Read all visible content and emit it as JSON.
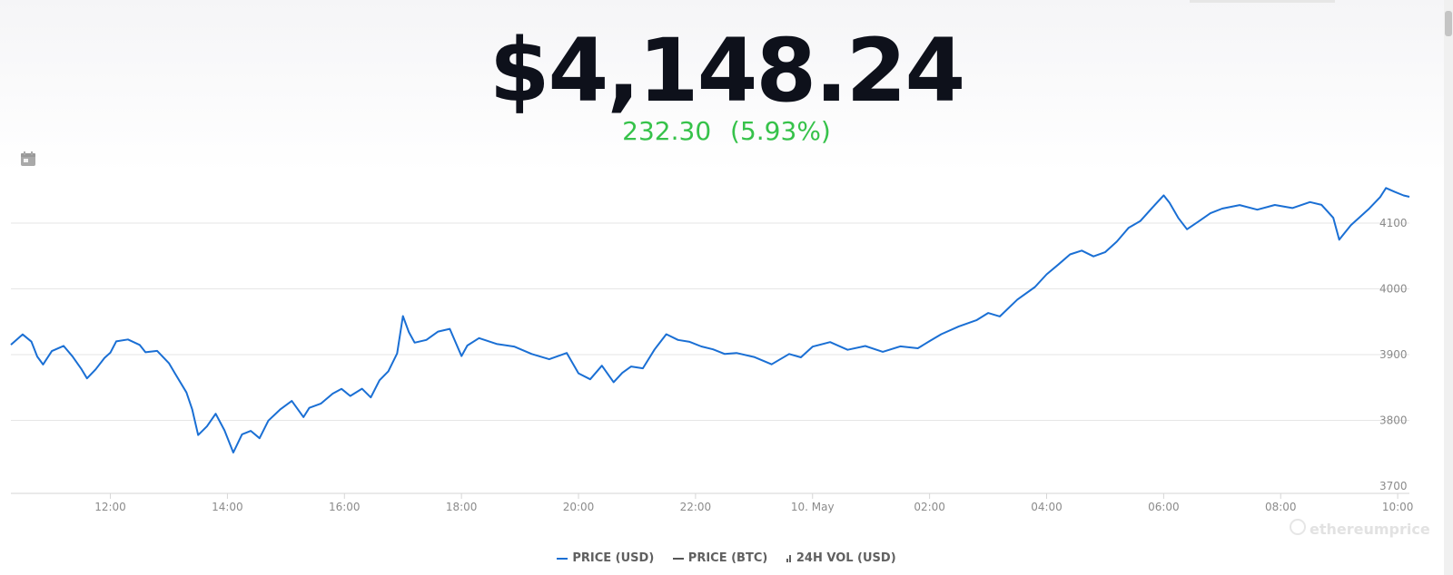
{
  "header": {
    "price": "$4,148.24",
    "change_abs": "232.30",
    "change_pct": "(5.93%)"
  },
  "legend": {
    "items": [
      {
        "label": "PRICE (USD)",
        "color": "#1a6fd4",
        "symbol": "line"
      },
      {
        "label": "PRICE (BTC)",
        "color": "#555555",
        "symbol": "line"
      },
      {
        "label": "24H VOL (USD)",
        "color": "#555555",
        "symbol": "bars"
      }
    ]
  },
  "watermark": "ethereumprice",
  "icons": {
    "calendar": "calendar-icon"
  },
  "colors": {
    "price_line": "#1a6fd4",
    "change_positive": "#36c24a"
  },
  "chart_data": {
    "type": "line",
    "title": "",
    "xlabel": "",
    "ylabel": "",
    "ylim": [
      3700,
      4155
    ],
    "y_ticks": [
      3700,
      3800,
      3900,
      4000,
      4100
    ],
    "grid": true,
    "legend_position": "bottom-center",
    "x_axis": {
      "start_hour": 10.3,
      "end_hour": 34.2,
      "ticks": [
        {
          "label": "12:00",
          "hour": 12
        },
        {
          "label": "14:00",
          "hour": 14
        },
        {
          "label": "16:00",
          "hour": 16
        },
        {
          "label": "18:00",
          "hour": 18
        },
        {
          "label": "20:00",
          "hour": 20
        },
        {
          "label": "22:00",
          "hour": 22
        },
        {
          "label": "10. May",
          "hour": 24
        },
        {
          "label": "02:00",
          "hour": 26
        },
        {
          "label": "04:00",
          "hour": 28
        },
        {
          "label": "06:00",
          "hour": 30
        },
        {
          "label": "08:00",
          "hour": 32
        },
        {
          "label": "10:00",
          "hour": 34
        }
      ]
    },
    "series": [
      {
        "name": "PRICE (USD)",
        "x": [
          10.3,
          10.5,
          10.65,
          10.75,
          10.85,
          11.0,
          11.2,
          11.35,
          11.5,
          11.6,
          11.75,
          11.9,
          12.0,
          12.1,
          12.3,
          12.5,
          12.6,
          12.8,
          13.0,
          13.1,
          13.3,
          13.4,
          13.5,
          13.65,
          13.8,
          13.95,
          14.1,
          14.25,
          14.4,
          14.55,
          14.7,
          14.9,
          15.1,
          15.3,
          15.4,
          15.6,
          15.8,
          15.95,
          16.1,
          16.3,
          16.45,
          16.6,
          16.75,
          16.9,
          17.0,
          17.1,
          17.2,
          17.4,
          17.6,
          17.8,
          18.0,
          18.1,
          18.3,
          18.6,
          18.9,
          19.2,
          19.5,
          19.8,
          20.0,
          20.2,
          20.4,
          20.6,
          20.75,
          20.9,
          21.1,
          21.3,
          21.5,
          21.7,
          21.9,
          22.1,
          22.3,
          22.5,
          22.7,
          23.0,
          23.3,
          23.6,
          23.8,
          24.0,
          24.3,
          24.6,
          24.9,
          25.2,
          25.5,
          25.8,
          26.0,
          26.2,
          26.5,
          26.8,
          27.0,
          27.2,
          27.5,
          27.8,
          28.0,
          28.2,
          28.4,
          28.6,
          28.8,
          29.0,
          29.2,
          29.4,
          29.6,
          29.8,
          30.0,
          30.1,
          30.25,
          30.4,
          30.6,
          30.8,
          31.0,
          31.3,
          31.6,
          31.9,
          32.2,
          32.5,
          32.7,
          32.9,
          33.0,
          33.2,
          33.5,
          33.7,
          33.8,
          33.95,
          34.1,
          34.2
        ],
        "y": [
          3915,
          3932,
          3922,
          3900,
          3888,
          3908,
          3915,
          3898,
          3878,
          3862,
          3875,
          3892,
          3900,
          3918,
          3922,
          3915,
          3905,
          3908,
          3890,
          3875,
          3845,
          3818,
          3778,
          3790,
          3808,
          3782,
          3748,
          3776,
          3782,
          3772,
          3800,
          3818,
          3832,
          3808,
          3822,
          3828,
          3842,
          3848,
          3836,
          3846,
          3832,
          3858,
          3872,
          3900,
          3958,
          3935,
          3920,
          3925,
          3938,
          3942,
          3900,
          3915,
          3925,
          3915,
          3910,
          3898,
          3890,
          3900,
          3870,
          3862,
          3884,
          3860,
          3875,
          3885,
          3882,
          3910,
          3932,
          3922,
          3918,
          3910,
          3905,
          3898,
          3900,
          3895,
          3885,
          3902,
          3898,
          3915,
          3922,
          3910,
          3915,
          3905,
          3912,
          3908,
          3918,
          3928,
          3940,
          3950,
          3962,
          3958,
          3985,
          4005,
          4025,
          4040,
          4055,
          4060,
          4050,
          4055,
          4070,
          4090,
          4100,
          4120,
          4140,
          4130,
          4108,
          4092,
          4105,
          4118,
          4125,
          4130,
          4122,
          4128,
          4122,
          4130,
          4125,
          4105,
          4072,
          4095,
          4120,
          4140,
          4155,
          4150,
          4145,
          4143
        ]
      }
    ]
  }
}
